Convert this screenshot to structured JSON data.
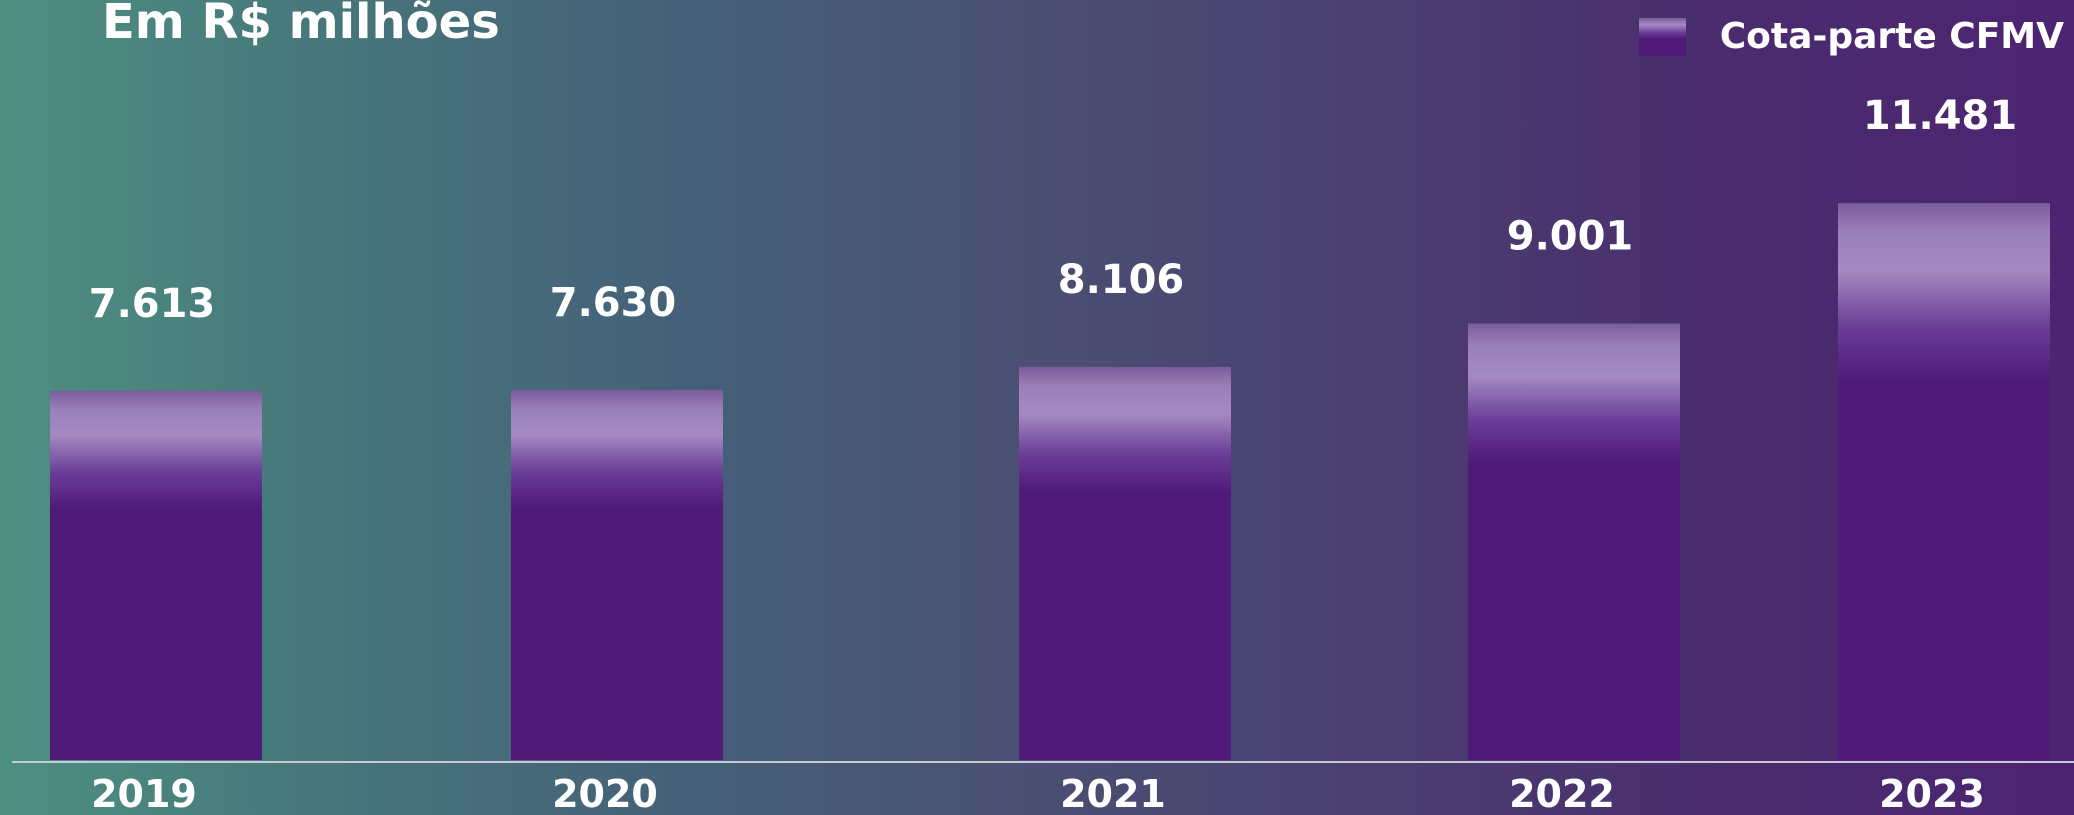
{
  "header": {
    "title": "Em R$ milhões"
  },
  "legend": {
    "label": "Cota-parte CFMV"
  },
  "colors": {
    "bar": "#4f1a78",
    "bar_highlight": "#a58ac2",
    "baseline": "#c9c9d4",
    "background_start": "#4e8f82",
    "background_end": "#4c2472"
  },
  "chart_data": {
    "type": "bar",
    "title": "Em R$ milhões",
    "categories": [
      "2019",
      "2020",
      "2021",
      "2022",
      "2023"
    ],
    "values": [
      7613,
      7630,
      8106,
      9001,
      11481
    ],
    "value_labels": [
      "7.613",
      "7.630",
      "8.106",
      "9.001",
      "11.481"
    ],
    "series": [
      {
        "name": "Cota-parte CFMV",
        "values": [
          7613,
          7630,
          8106,
          9001,
          11481
        ]
      }
    ],
    "xlabel": "",
    "ylabel": "",
    "grid": false,
    "legend_position": "top-right"
  }
}
